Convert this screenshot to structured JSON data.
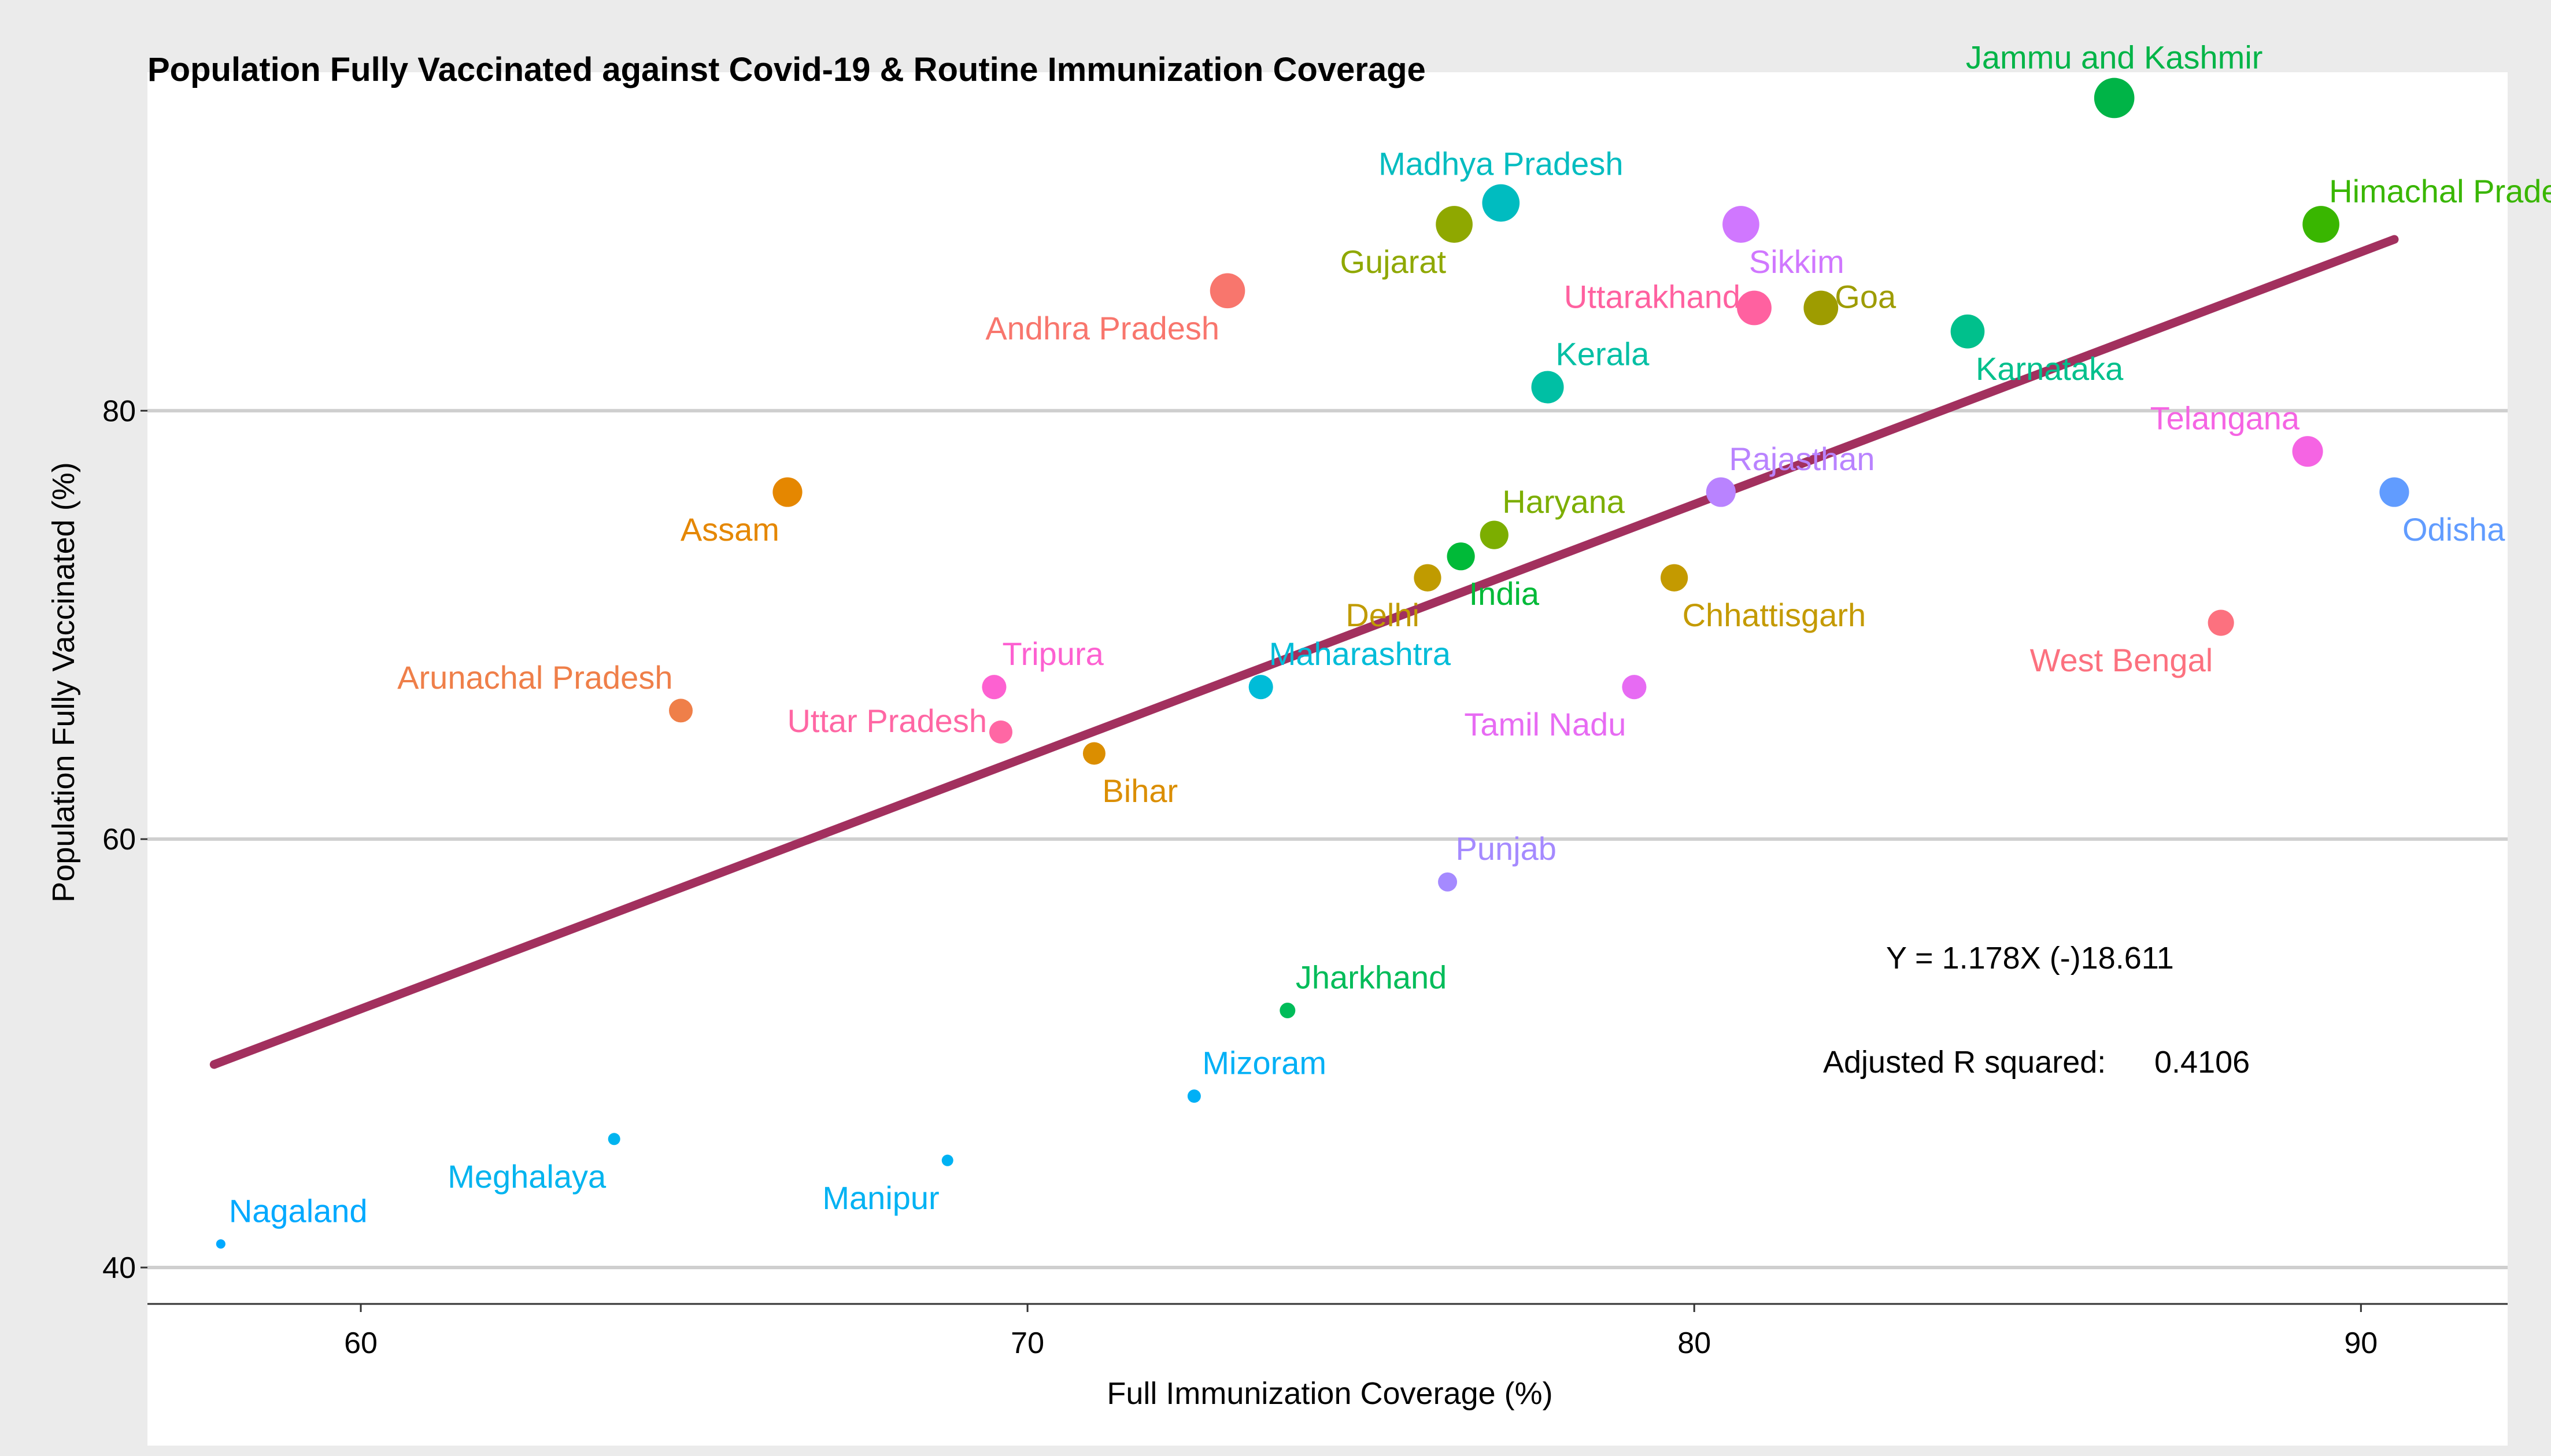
{
  "chart_data": {
    "type": "scatter",
    "title": "Population Fully Vaccinated against Covid-19 & Routine Immunization Coverage",
    "xlabel": "Full Immunization Coverage (%)",
    "ylabel": "Population Fully Vaccinated (%)",
    "xlim": [
      56.8,
      92.2
    ],
    "ylim": [
      38.3,
      95.8
    ],
    "xticks": [
      "60",
      "70",
      "80",
      "90"
    ],
    "yticks": [
      "40",
      "60",
      "80"
    ],
    "grid": "horizontal",
    "points": [
      {
        "label": "Jammu and Kashmir",
        "x": 86.3,
        "y": 94.6,
        "color": "#00b447",
        "label_pos": "above"
      },
      {
        "label": "Madhya Pradesh",
        "x": 77.1,
        "y": 89.7,
        "color": "#00bcc0",
        "label_pos": "above"
      },
      {
        "label": "Himachal Pradesh",
        "x": 89.4,
        "y": 88.7,
        "color": "#39b600",
        "label_pos": "above-right"
      },
      {
        "label": "Sikkim",
        "x": 80.7,
        "y": 88.7,
        "color": "#d077ff",
        "label_pos": "below-right"
      },
      {
        "label": "Gujarat",
        "x": 76.4,
        "y": 88.7,
        "color": "#8fa800",
        "label_pos": "below-left"
      },
      {
        "label": "Andhra Pradesh",
        "x": 73.0,
        "y": 85.6,
        "color": "#f8766d",
        "label_pos": "below-left"
      },
      {
        "label": "Uttarakhand",
        "x": 80.9,
        "y": 84.8,
        "color": "#ff61a0",
        "label_pos": "left"
      },
      {
        "label": "Goa",
        "x": 81.9,
        "y": 84.8,
        "color": "#9e9c00",
        "label_pos": "right"
      },
      {
        "label": "Karnataka",
        "x": 84.1,
        "y": 83.7,
        "color": "#00c08c",
        "label_pos": "below-right"
      },
      {
        "label": "Kerala",
        "x": 77.8,
        "y": 81.1,
        "color": "#00bfa4",
        "label_pos": "above-right"
      },
      {
        "label": "Telangana",
        "x": 89.2,
        "y": 78.1,
        "color": "#f564e3",
        "label_pos": "above-left"
      },
      {
        "label": "Odisha",
        "x": 90.5,
        "y": 76.2,
        "color": "#619cff",
        "label_pos": "below-right"
      },
      {
        "label": "Rajasthan",
        "x": 80.4,
        "y": 76.2,
        "color": "#b983ff",
        "label_pos": "above-right"
      },
      {
        "label": "Assam",
        "x": 66.4,
        "y": 76.2,
        "color": "#e58700",
        "label_pos": "below-left"
      },
      {
        "label": "Haryana",
        "x": 77.0,
        "y": 74.2,
        "color": "#7cae00",
        "label_pos": "above-right"
      },
      {
        "label": "India",
        "x": 76.5,
        "y": 73.2,
        "color": "#00ba38",
        "label_pos": "below-right"
      },
      {
        "label": "Delhi",
        "x": 76.0,
        "y": 72.2,
        "color": "#c09b00",
        "label_pos": "below-left"
      },
      {
        "label": "Chhattisgarh",
        "x": 79.7,
        "y": 72.2,
        "color": "#c49a00",
        "label_pos": "below-right"
      },
      {
        "label": "West Bengal",
        "x": 87.9,
        "y": 70.1,
        "color": "#fc717f",
        "label_pos": "below-left"
      },
      {
        "label": "Tripura",
        "x": 69.5,
        "y": 67.1,
        "color": "#fd61d1",
        "label_pos": "above-right"
      },
      {
        "label": "Maharashtra",
        "x": 73.5,
        "y": 67.1,
        "color": "#00bcd8",
        "label_pos": "above-right"
      },
      {
        "label": "Tamil Nadu",
        "x": 79.1,
        "y": 67.1,
        "color": "#e76bf3",
        "label_pos": "below-left"
      },
      {
        "label": "Arunachal Pradesh",
        "x": 64.8,
        "y": 66.0,
        "color": "#ef7f49",
        "label_pos": "above-left"
      },
      {
        "label": "Uttar Pradesh",
        "x": 69.6,
        "y": 65.0,
        "color": "#ff67a4",
        "label_pos": "left"
      },
      {
        "label": "Bihar",
        "x": 71.0,
        "y": 64.0,
        "color": "#db8e00",
        "label_pos": "below-right"
      },
      {
        "label": "Punjab",
        "x": 76.3,
        "y": 58.0,
        "color": "#a58aff",
        "label_pos": "above-right"
      },
      {
        "label": "Jharkhand",
        "x": 73.9,
        "y": 52.0,
        "color": "#00bc59",
        "label_pos": "above-right"
      },
      {
        "label": "Mizoram",
        "x": 72.5,
        "y": 48.0,
        "color": "#00b0f6",
        "label_pos": "above-right"
      },
      {
        "label": "Meghalaya",
        "x": 63.8,
        "y": 46.0,
        "color": "#00b4ef",
        "label_pos": "below-left"
      },
      {
        "label": "Manipur",
        "x": 68.8,
        "y": 45.0,
        "color": "#00b2f3",
        "label_pos": "below-left"
      },
      {
        "label": "Nagaland",
        "x": 57.9,
        "y": 41.1,
        "color": "#00a9ff",
        "label_pos": "above-right"
      }
    ],
    "regression": {
      "slope": 1.178,
      "intercept": -18.611,
      "x_range": [
        57.8,
        90.5
      ],
      "color": "#a2305e"
    },
    "equation_label": "Y = 1.178X (-)18.611",
    "r2_label": "Adjusted R squared:",
    "r2_value": "0.4106"
  }
}
